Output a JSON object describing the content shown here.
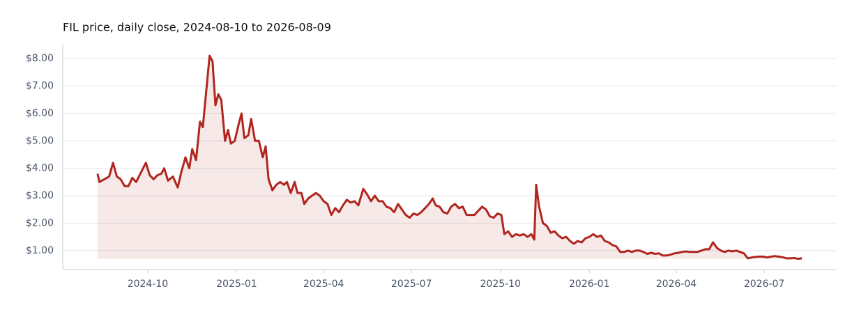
{
  "chart_data": {
    "type": "area-line",
    "title": "FIL price, daily close, 2024-08-10 to 2026-08-09",
    "color": "#b0261e",
    "grid": true,
    "xlim": [
      "2024-07-05",
      "2026-09-14"
    ],
    "ylim": [
      0.31,
      8.51
    ],
    "xticks": [
      {
        "value": "2024-10-01",
        "label": "2024-10"
      },
      {
        "value": "2025-01-01",
        "label": "2025-01"
      },
      {
        "value": "2025-04-01",
        "label": "2025-04"
      },
      {
        "value": "2025-07-01",
        "label": "2025-07"
      },
      {
        "value": "2025-10-01",
        "label": "2025-10"
      },
      {
        "value": "2026-01-01",
        "label": "2026-01"
      },
      {
        "value": "2026-04-01",
        "label": "2026-04"
      },
      {
        "value": "2026-07-01",
        "label": "2026-07"
      }
    ],
    "yticks": [
      {
        "value": 1,
        "label": "$1.00"
      },
      {
        "value": 2,
        "label": "$2.00"
      },
      {
        "value": 3,
        "label": "$3.00"
      },
      {
        "value": 4,
        "label": "$4.00"
      },
      {
        "value": 5,
        "label": "$5.00"
      },
      {
        "value": 6,
        "label": "$6.00"
      },
      {
        "value": 7,
        "label": "$7.00"
      },
      {
        "value": 8,
        "label": "$8.00"
      }
    ],
    "x": [
      "2024-08-10",
      "2024-08-12",
      "2024-08-17",
      "2024-08-22",
      "2024-08-26",
      "2024-08-30",
      "2024-09-03",
      "2024-09-07",
      "2024-09-11",
      "2024-09-15",
      "2024-09-19",
      "2024-09-24",
      "2024-09-29",
      "2024-10-03",
      "2024-10-07",
      "2024-10-11",
      "2024-10-15",
      "2024-10-18",
      "2024-10-22",
      "2024-10-27",
      "2024-11-01",
      "2024-11-05",
      "2024-11-09",
      "2024-11-13",
      "2024-11-16",
      "2024-11-20",
      "2024-11-24",
      "2024-11-27",
      "2024-12-01",
      "2024-12-04",
      "2024-12-07",
      "2024-12-10",
      "2024-12-13",
      "2024-12-16",
      "2024-12-20",
      "2024-12-23",
      "2024-12-26",
      "2024-12-30",
      "2025-01-03",
      "2025-01-06",
      "2025-01-09",
      "2025-01-13",
      "2025-01-16",
      "2025-01-20",
      "2025-01-24",
      "2025-01-28",
      "2025-01-31",
      "2025-02-03",
      "2025-02-07",
      "2025-02-11",
      "2025-02-15",
      "2025-02-19",
      "2025-02-22",
      "2025-02-26",
      "2025-03-02",
      "2025-03-05",
      "2025-03-09",
      "2025-03-12",
      "2025-03-16",
      "2025-03-20",
      "2025-03-24",
      "2025-03-28",
      "2025-04-01",
      "2025-04-05",
      "2025-04-09",
      "2025-04-13",
      "2025-04-17",
      "2025-04-21",
      "2025-04-25",
      "2025-04-29",
      "2025-05-03",
      "2025-05-07",
      "2025-05-12",
      "2025-05-16",
      "2025-05-20",
      "2025-05-24",
      "2025-05-28",
      "2025-06-01",
      "2025-06-05",
      "2025-06-09",
      "2025-06-13",
      "2025-06-17",
      "2025-06-21",
      "2025-06-25",
      "2025-06-29",
      "2025-07-03",
      "2025-07-07",
      "2025-07-11",
      "2025-07-15",
      "2025-07-19",
      "2025-07-23",
      "2025-07-26",
      "2025-07-30",
      "2025-08-03",
      "2025-08-07",
      "2025-08-11",
      "2025-08-15",
      "2025-08-19",
      "2025-08-23",
      "2025-08-27",
      "2025-08-31",
      "2025-09-04",
      "2025-09-08",
      "2025-09-12",
      "2025-09-16",
      "2025-09-20",
      "2025-09-24",
      "2025-09-28",
      "2025-10-02",
      "2025-10-05",
      "2025-10-09",
      "2025-10-13",
      "2025-10-17",
      "2025-10-21",
      "2025-10-25",
      "2025-10-29",
      "2025-11-02",
      "2025-11-05",
      "2025-11-07",
      "2025-11-10",
      "2025-11-14",
      "2025-11-18",
      "2025-11-22",
      "2025-11-26",
      "2025-11-30",
      "2025-12-04",
      "2025-12-08",
      "2025-12-12",
      "2025-12-16",
      "2025-12-20",
      "2025-12-24",
      "2025-12-28",
      "2026-01-01",
      "2026-01-05",
      "2026-01-09",
      "2026-01-13",
      "2026-01-17",
      "2026-01-21",
      "2026-01-25",
      "2026-01-29",
      "2026-02-02",
      "2026-02-06",
      "2026-02-10",
      "2026-02-14",
      "2026-02-18",
      "2026-02-22",
      "2026-02-26",
      "2026-03-02",
      "2026-03-06",
      "2026-03-10",
      "2026-03-14",
      "2026-03-18",
      "2026-03-22",
      "2026-03-26",
      "2026-03-30",
      "2026-04-03",
      "2026-04-07",
      "2026-04-11",
      "2026-04-15",
      "2026-04-19",
      "2026-04-23",
      "2026-04-27",
      "2026-05-01",
      "2026-05-05",
      "2026-05-09",
      "2026-05-13",
      "2026-05-17",
      "2026-05-21",
      "2026-05-25",
      "2026-05-29",
      "2026-06-02",
      "2026-06-06",
      "2026-06-10",
      "2026-06-14",
      "2026-06-18",
      "2026-06-22",
      "2026-06-26",
      "2026-06-30",
      "2026-07-04",
      "2026-07-08",
      "2026-07-12",
      "2026-07-16",
      "2026-07-20",
      "2026-07-24",
      "2026-07-28",
      "2026-08-01",
      "2026-08-05",
      "2026-08-09"
    ],
    "values": [
      3.8,
      3.5,
      3.6,
      3.7,
      4.2,
      3.7,
      3.6,
      3.35,
      3.35,
      3.65,
      3.5,
      3.85,
      4.2,
      3.75,
      3.6,
      3.75,
      3.8,
      4.0,
      3.55,
      3.7,
      3.3,
      3.9,
      4.4,
      4.0,
      4.7,
      4.3,
      5.7,
      5.5,
      7.0,
      8.1,
      7.9,
      6.3,
      6.7,
      6.5,
      5.0,
      5.4,
      4.9,
      5.0,
      5.6,
      6.0,
      5.1,
      5.2,
      5.8,
      5.0,
      5.0,
      4.4,
      4.8,
      3.6,
      3.2,
      3.4,
      3.5,
      3.4,
      3.5,
      3.1,
      3.5,
      3.1,
      3.1,
      2.7,
      2.9,
      3.0,
      3.1,
      3.0,
      2.8,
      2.7,
      2.3,
      2.55,
      2.4,
      2.65,
      2.85,
      2.75,
      2.8,
      2.65,
      3.25,
      3.05,
      2.8,
      3.0,
      2.8,
      2.8,
      2.6,
      2.55,
      2.4,
      2.7,
      2.5,
      2.3,
      2.2,
      2.35,
      2.3,
      2.4,
      2.55,
      2.7,
      2.9,
      2.65,
      2.6,
      2.4,
      2.35,
      2.6,
      2.7,
      2.55,
      2.6,
      2.3,
      2.3,
      2.3,
      2.45,
      2.6,
      2.5,
      2.25,
      2.2,
      2.35,
      2.3,
      1.6,
      1.7,
      1.5,
      1.6,
      1.55,
      1.6,
      1.5,
      1.6,
      1.4,
      3.4,
      2.6,
      2.0,
      1.9,
      1.65,
      1.7,
      1.55,
      1.45,
      1.5,
      1.35,
      1.25,
      1.35,
      1.3,
      1.45,
      1.5,
      1.6,
      1.5,
      1.55,
      1.35,
      1.3,
      1.2,
      1.15,
      0.95,
      0.95,
      1.0,
      0.95,
      1.0,
      1.0,
      0.95,
      0.88,
      0.92,
      0.88,
      0.9,
      0.82,
      0.82,
      0.85,
      0.9,
      0.92,
      0.95,
      0.97,
      0.95,
      0.95,
      0.95,
      1.0,
      1.05,
      1.05,
      1.3,
      1.1,
      1.0,
      0.95,
      1.0,
      0.97,
      1.0,
      0.95,
      0.9,
      0.72,
      0.75,
      0.77,
      0.78,
      0.78,
      0.75,
      0.78,
      0.8,
      0.78,
      0.76,
      0.72,
      0.72,
      0.73,
      0.7,
      0.72
    ]
  }
}
